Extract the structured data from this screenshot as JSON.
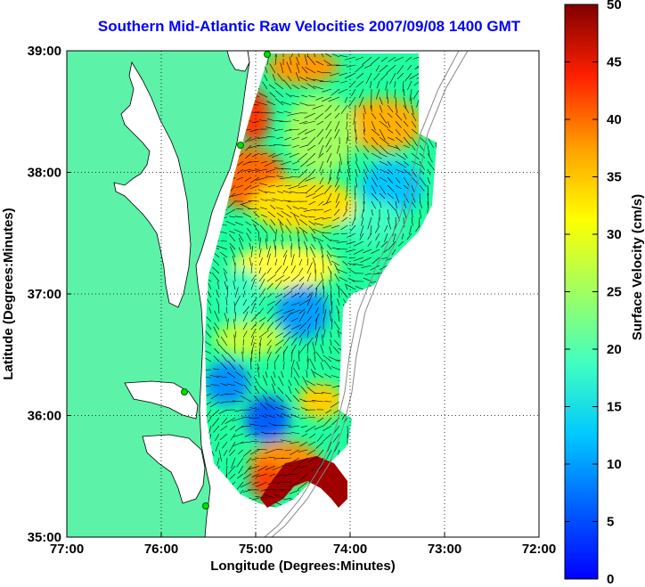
{
  "title": "Southern Mid-Atlantic Raw Velocities 2007/09/08 1400 GMT",
  "map": {
    "x_label": "Longitude (Degrees:Minutes)",
    "y_label": "Latitude (Degrees:Minutes)",
    "x_ticks": [
      "77:00",
      "76:00",
      "75:00",
      "74:00",
      "73:00",
      "72:00"
    ],
    "y_ticks": [
      "39:00",
      "38:00",
      "37:00",
      "36:00",
      "35:00"
    ],
    "land_color": "#5cf2a8",
    "coast_color": "#000000",
    "station_color": "#00e000"
  },
  "colorbar": {
    "label": "Surface Velocity (cm/s)",
    "ticks": [
      "50",
      "45",
      "40",
      "35",
      "30",
      "25",
      "20",
      "15",
      "10",
      "5",
      "0"
    ],
    "min": 0,
    "max": 50,
    "colormap": "jet"
  },
  "chart_data": {
    "type": "heatmap",
    "title": "Southern Mid-Atlantic Raw Velocities 2007/09/08 1400 GMT",
    "xlabel": "Longitude (Degrees:Minutes)",
    "ylabel": "Latitude (Degrees:Minutes)",
    "xlim": [
      -77,
      -72
    ],
    "ylim": [
      35,
      39
    ],
    "value_label": "Surface Velocity (cm/s)",
    "value_range": [
      0,
      50
    ],
    "grid": true
  }
}
